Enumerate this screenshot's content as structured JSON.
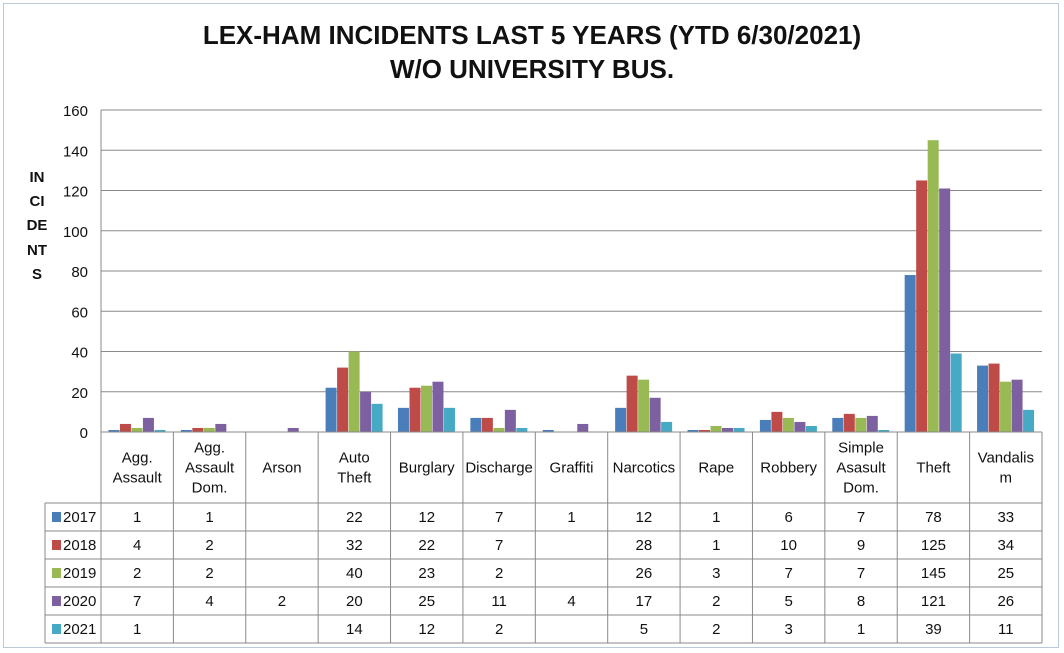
{
  "chart_data": {
    "type": "bar",
    "title": "LEX-HAM INCIDENTS LAST 5 YEARS (YTD 6/30/2021)",
    "subtitle": "W/O UNIVERSITY BUS.",
    "xlabel": "",
    "ylabel": "INCIDENTS",
    "ylim": [
      0,
      160
    ],
    "yticks": [
      0,
      20,
      40,
      60,
      80,
      100,
      120,
      140,
      160
    ],
    "grid": true,
    "legend": "data-table",
    "categories": [
      [
        "Agg.",
        "Assault"
      ],
      [
        "Agg.",
        "Assault",
        "Dom."
      ],
      [
        "Arson"
      ],
      [
        "Auto",
        "Theft"
      ],
      [
        "Burglary"
      ],
      [
        "Discharge"
      ],
      [
        "Graffiti"
      ],
      [
        "Narcotics"
      ],
      [
        "Rape"
      ],
      [
        "Robbery"
      ],
      [
        "Simple",
        "Asasult",
        "Dom."
      ],
      [
        "Theft"
      ],
      [
        "Vandalis",
        "m"
      ]
    ],
    "series": [
      {
        "name": "2017",
        "color": "#4a7ebb",
        "values": [
          1,
          1,
          null,
          22,
          12,
          7,
          1,
          12,
          1,
          6,
          7,
          78,
          33
        ]
      },
      {
        "name": "2018",
        "color": "#be4b48",
        "values": [
          4,
          2,
          null,
          32,
          22,
          7,
          null,
          28,
          1,
          10,
          9,
          125,
          34
        ]
      },
      {
        "name": "2019",
        "color": "#98b954",
        "values": [
          2,
          2,
          null,
          40,
          23,
          2,
          null,
          26,
          3,
          7,
          7,
          145,
          25
        ]
      },
      {
        "name": "2020",
        "color": "#7d60a0",
        "values": [
          7,
          4,
          2,
          20,
          25,
          11,
          4,
          17,
          2,
          5,
          8,
          121,
          26
        ]
      },
      {
        "name": "2021",
        "color": "#46aac5",
        "values": [
          1,
          null,
          null,
          14,
          12,
          2,
          null,
          5,
          2,
          3,
          1,
          39,
          11
        ]
      }
    ]
  }
}
